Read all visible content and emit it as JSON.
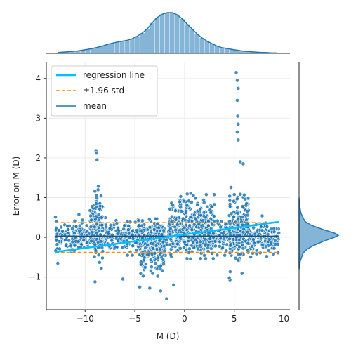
{
  "chart_data": {
    "type": "scatter",
    "title": "",
    "xlabel": "M (D)",
    "ylabel": "Error on M (D)",
    "xlim": [
      -13.9,
      10.6
    ],
    "ylim": [
      -1.82,
      4.42
    ],
    "x_ticks": [
      -10,
      -5,
      0,
      5,
      10
    ],
    "y_ticks": [
      -1,
      0,
      1,
      2,
      3,
      4
    ],
    "x_tick_labels": [
      "−10",
      "−5",
      "0",
      "5",
      "10"
    ],
    "y_tick_labels": [
      "−1",
      "0",
      "1",
      "2",
      "3",
      "4"
    ],
    "grid": true,
    "legend_position": "top-left",
    "legend": [
      {
        "label": "regression line",
        "color": "#00bfff",
        "style": "solid"
      },
      {
        "label": "±1.96 std",
        "color": "#ff8c00",
        "style": "dashed"
      },
      {
        "label": "mean",
        "color": "#1f77b4",
        "style": "solid"
      }
    ],
    "point_color": "#1f77b4",
    "series": [
      {
        "name": "regression line",
        "x": [
          -13.0,
          9.5
        ],
        "y": [
          -0.37,
          0.39
        ]
      },
      {
        "name": "±1.96 std",
        "x": [
          -13.0,
          9.5
        ],
        "y_upper": [
          0.37,
          0.37
        ],
        "y_lower": [
          -0.38,
          -0.38
        ]
      },
      {
        "name": "mean",
        "x": [
          -13.0,
          9.5
        ],
        "y": [
          0.03,
          0.03
        ]
      }
    ],
    "point_clusters": [
      {
        "x_range": [
          -13.0,
          9.5
        ],
        "y_center": 0.0,
        "y_spread": 0.25,
        "count": 900
      },
      {
        "x_range": [
          -9.5,
          -8.2
        ],
        "y_center": 0.3,
        "y_spread": 0.55,
        "count": 120
      },
      {
        "x_range": [
          -4.5,
          -2.0
        ],
        "y_center": -0.3,
        "y_spread": 0.45,
        "count": 180
      },
      {
        "x_range": [
          -1.5,
          3.0
        ],
        "y_center": 0.35,
        "y_spread": 0.45,
        "count": 220
      },
      {
        "x_range": [
          4.5,
          6.5
        ],
        "y_center": 0.3,
        "y_spread": 0.55,
        "count": 150
      }
    ],
    "outliers": [
      {
        "x": 5.2,
        "y": 4.15
      },
      {
        "x": 5.3,
        "y": 3.95
      },
      {
        "x": 5.4,
        "y": 3.75
      },
      {
        "x": 5.3,
        "y": 3.45
      },
      {
        "x": 5.35,
        "y": 3.05
      },
      {
        "x": 5.4,
        "y": 2.85
      },
      {
        "x": 5.3,
        "y": 2.65
      },
      {
        "x": 5.4,
        "y": 2.45
      },
      {
        "x": -8.9,
        "y": 2.18
      },
      {
        "x": -8.85,
        "y": 2.12
      },
      {
        "x": -8.8,
        "y": 1.95
      },
      {
        "x": 5.6,
        "y": 1.9
      },
      {
        "x": 5.9,
        "y": 1.85
      },
      {
        "x": -1.8,
        "y": -1.55
      },
      {
        "x": -2.4,
        "y": -1.35
      },
      {
        "x": -1.1,
        "y": -1.2
      },
      {
        "x": -3.5,
        "y": -1.28
      },
      {
        "x": -4.5,
        "y": -1.25
      },
      {
        "x": -9.0,
        "y": -1.12
      },
      {
        "x": 4.5,
        "y": -1.02
      },
      {
        "x": -6.2,
        "y": -1.05
      }
    ],
    "marginal_x": {
      "type": "histogram_kde",
      "bin_start": -13.0,
      "bin_width": 0.5,
      "density": [
        0.02,
        0.03,
        0.04,
        0.05,
        0.06,
        0.08,
        0.1,
        0.12,
        0.15,
        0.18,
        0.22,
        0.25,
        0.28,
        0.3,
        0.32,
        0.36,
        0.42,
        0.5,
        0.6,
        0.75,
        0.88,
        0.96,
        1.0,
        1.0,
        0.95,
        0.85,
        0.72,
        0.6,
        0.48,
        0.38,
        0.3,
        0.24,
        0.18,
        0.14,
        0.12,
        0.1,
        0.08,
        0.06,
        0.05,
        0.04,
        0.03,
        0.02,
        0.02,
        0.01,
        0.01
      ]
    },
    "marginal_y": {
      "type": "kde",
      "y": [
        -0.8,
        -0.6,
        -0.4,
        -0.3,
        -0.2,
        -0.1,
        0.0,
        0.05,
        0.1,
        0.2,
        0.3,
        0.4,
        0.6,
        0.8,
        1.0
      ],
      "density": [
        0.0,
        0.03,
        0.1,
        0.2,
        0.38,
        0.62,
        0.9,
        1.0,
        0.92,
        0.6,
        0.32,
        0.15,
        0.05,
        0.01,
        0.0
      ]
    }
  }
}
